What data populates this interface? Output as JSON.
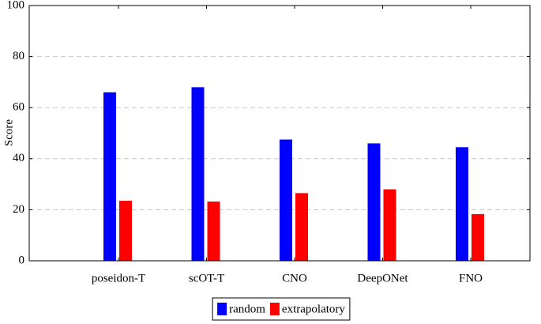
{
  "chart_data": {
    "type": "bar",
    "y_label": "Score",
    "categories": [
      "poseidon-T",
      "scOT-T",
      "CNO",
      "DeepONet",
      "FNO"
    ],
    "series": [
      {
        "name": "random",
        "color": "#0000ff",
        "values": [
          66,
          68,
          47.5,
          46,
          44.5
        ]
      },
      {
        "name": "extrapolatory",
        "color": "#ff0000",
        "values": [
          23.5,
          23.2,
          26.5,
          28,
          18.3
        ]
      }
    ],
    "ylim": [
      0,
      100
    ],
    "yticks": [
      0,
      20,
      40,
      60,
      80,
      100
    ],
    "grid": true,
    "legend": "bottom"
  }
}
